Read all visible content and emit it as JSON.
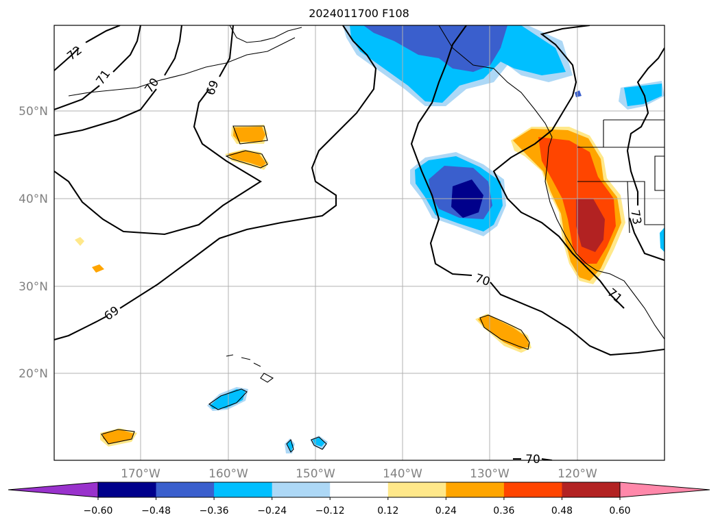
{
  "title": "2024011700 F108",
  "lat_labels": [
    "50°N",
    "40°N",
    "30°N",
    "20°N"
  ],
  "lon_labels": [
    "170°W",
    "160°W",
    "150°W",
    "140°W",
    "130°W",
    "120°W"
  ],
  "colorbar": {
    "labels": [
      "−0.60",
      "−0.48",
      "−0.36",
      "−0.24",
      "−0.12",
      "0.12",
      "0.24",
      "0.36",
      "0.48",
      "0.60"
    ],
    "colors": [
      "#9932cc",
      "#00008b",
      "#3a5fcd",
      "#00bfff",
      "#add8f6",
      "#ffffff",
      "#ffe88a",
      "#ffa500",
      "#ff4500",
      "#b22222",
      "#ff88aa"
    ]
  },
  "contour_labels": [
    "72",
    "71",
    "70",
    "69",
    "69",
    "70",
    "71",
    "73",
    "70"
  ]
}
